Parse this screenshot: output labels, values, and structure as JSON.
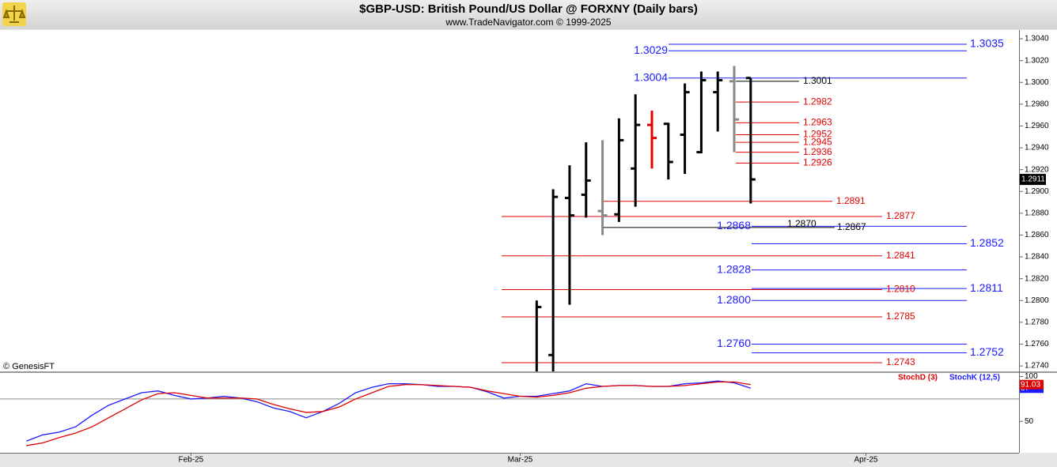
{
  "chart_data": [
    {
      "type": "ohlc",
      "title": "$GBP-USD:  British Pound/US Dollar @ FORXNY  (Daily bars)",
      "subtitle": "www.TradeNavigator.com © 1999-2025",
      "watermark": "© GenesisFT",
      "x": [
        21,
        22,
        23,
        24,
        25,
        26,
        27,
        28,
        29,
        30,
        31,
        32,
        33,
        34
      ],
      "open": [
        1.273,
        1.275,
        1.2894,
        1.2897,
        1.2882,
        1.2879,
        1.2921,
        1.2961,
        1.2962,
        1.2952,
        1.2936,
        1.2991,
        1.3001,
        1.3004
      ],
      "high": [
        1.28,
        1.2902,
        1.2924,
        1.2945,
        1.2947,
        1.2967,
        1.2989,
        1.2974,
        1.2963,
        1.2999,
        1.301,
        1.301,
        1.3015,
        1.3004
      ],
      "low": [
        1.272,
        1.2725,
        1.2796,
        1.2876,
        1.286,
        1.2872,
        1.2886,
        1.2921,
        1.2911,
        1.2916,
        1.2935,
        1.2955,
        1.2936,
        1.2889
      ],
      "close": [
        1.2794,
        1.2895,
        1.2878,
        1.291,
        1.2878,
        1.2947,
        1.2961,
        1.2949,
        1.2927,
        1.2991,
        1.3002,
        1.3002,
        1.2966,
        1.2911
      ],
      "close_labels": [
        null,
        null,
        null,
        null,
        null,
        null,
        null,
        null,
        null,
        null,
        null,
        null,
        null,
        "1.2911"
      ],
      "bar_colors": [
        "#000000",
        "#000000",
        "#000000",
        "#000000",
        "#888888",
        "#000000",
        "#000000",
        "#e00000",
        "#000000",
        "#000000",
        "#000000",
        "#000000",
        "#888888",
        "#000000"
      ],
      "ylim": [
        1.2735,
        1.3048
      ],
      "yticks": [
        {
          "value": 1.274,
          "label": "1.2740"
        },
        {
          "value": 1.276,
          "label": "1.2760"
        },
        {
          "value": 1.278,
          "label": "1.2780"
        },
        {
          "value": 1.28,
          "label": "1.2800"
        },
        {
          "value": 1.282,
          "label": "1.2820"
        },
        {
          "value": 1.284,
          "label": "1.2840"
        },
        {
          "value": 1.286,
          "label": "1.2860"
        },
        {
          "value": 1.288,
          "label": "1.2880"
        },
        {
          "value": 1.29,
          "label": "1.2900"
        },
        {
          "value": 1.292,
          "label": "1.2920"
        },
        {
          "value": 1.294,
          "label": "1.2940"
        },
        {
          "value": 1.296,
          "label": "1.2960"
        },
        {
          "value": 1.298,
          "label": "1.2980"
        },
        {
          "value": 1.3,
          "label": "1.3000"
        },
        {
          "value": 1.302,
          "label": "1.3020"
        },
        {
          "value": 1.304,
          "label": "1.3040"
        }
      ],
      "levels": [
        {
          "value": 1.3035,
          "label": "1.3035",
          "color": "#1a1aff"
        },
        {
          "value": 1.3029,
          "label": "1.3029",
          "color": "#1a1aff"
        },
        {
          "value": 1.3004,
          "label": "1.3004",
          "color": "#1a1aff"
        },
        {
          "value": 1.3001,
          "label": "1.3001",
          "color": "#000000"
        },
        {
          "value": 1.2982,
          "label": "1.2982",
          "color": "#e00000"
        },
        {
          "value": 1.2963,
          "label": "1.2963",
          "color": "#e00000"
        },
        {
          "value": 1.2952,
          "label": "1.2952",
          "color": "#e00000"
        },
        {
          "value": 1.2945,
          "label": "1.2945",
          "color": "#e00000"
        },
        {
          "value": 1.2936,
          "label": "1.2936",
          "color": "#e00000"
        },
        {
          "value": 1.2926,
          "label": "1.2926",
          "color": "#e00000"
        },
        {
          "value": 1.2891,
          "label": "1.2891",
          "color": "#e00000"
        },
        {
          "value": 1.2877,
          "label": "1.2877",
          "color": "#e00000"
        },
        {
          "value": 1.287,
          "label": "1.2870",
          "color": "#000000"
        },
        {
          "value": 1.2868,
          "label": "1.2868",
          "color": "#1a1aff"
        },
        {
          "value": 1.2867,
          "label": "1.2867",
          "color": "#000000"
        },
        {
          "value": 1.2852,
          "label": "1.2852",
          "color": "#1a1aff"
        },
        {
          "value": 1.2841,
          "label": "1.2841",
          "color": "#e00000"
        },
        {
          "value": 1.2828,
          "label": "1.2828",
          "color": "#1a1aff"
        },
        {
          "value": 1.2811,
          "label": "1.2811",
          "color": "#1a1aff"
        },
        {
          "value": 1.281,
          "label": "1.2810",
          "color": "#e00000"
        },
        {
          "value": 1.28,
          "label": "1.2800",
          "color": "#1a1aff"
        },
        {
          "value": 1.2785,
          "label": "1.2785",
          "color": "#e00000"
        },
        {
          "value": 1.276,
          "label": "1.2760",
          "color": "#1a1aff"
        },
        {
          "value": 1.2752,
          "label": "1.2752",
          "color": "#1a1aff"
        },
        {
          "value": 1.2743,
          "label": "1.2743",
          "color": "#e00000"
        }
      ]
    },
    {
      "type": "line",
      "x": [
        -10,
        -9,
        -8,
        -7,
        -6,
        -5,
        -4,
        -3,
        -2,
        -1,
        0,
        1,
        2,
        3,
        4,
        5,
        6,
        7,
        8,
        9,
        10,
        11,
        12,
        13,
        14,
        15,
        16,
        17,
        18,
        19,
        20,
        21,
        22,
        23,
        24,
        25,
        26,
        27,
        28,
        29,
        30,
        31,
        32,
        33,
        34
      ],
      "series": [
        {
          "name": "StochK (12,5)",
          "color": "#1a1aff",
          "values": [
            28,
            35,
            38,
            44,
            57,
            68,
            75,
            82,
            84,
            79,
            75,
            76,
            78,
            76,
            72,
            65,
            61,
            54,
            61,
            70,
            82,
            88,
            92,
            92,
            91,
            89,
            89,
            88,
            83,
            76,
            78,
            78,
            81,
            84,
            92,
            89,
            90,
            90,
            89,
            89,
            92,
            93,
            95,
            93,
            87
          ]
        },
        {
          "name": "StochD (3)",
          "color": "#e00000",
          "values": [
            23,
            26,
            32,
            37,
            44,
            54,
            64,
            74,
            81,
            82,
            79,
            76,
            76,
            76,
            75,
            69,
            64,
            60,
            61,
            66,
            75,
            82,
            89,
            91,
            91,
            90,
            89,
            88,
            84,
            81,
            78,
            77,
            79,
            82,
            87,
            89,
            90,
            90,
            89,
            89,
            90,
            92,
            94,
            94,
            91.03
          ]
        }
      ],
      "hlines": [
        75
      ],
      "ylim": [
        15,
        104
      ],
      "yticks": [
        50,
        100
      ],
      "xlim": [
        -11.6,
        50.3
      ],
      "xticks": [
        {
          "value": 0,
          "label": "Feb-25"
        },
        {
          "value": 20,
          "label": "Mar-25"
        },
        {
          "value": 41,
          "label": "Apr-25"
        }
      ]
    }
  ]
}
